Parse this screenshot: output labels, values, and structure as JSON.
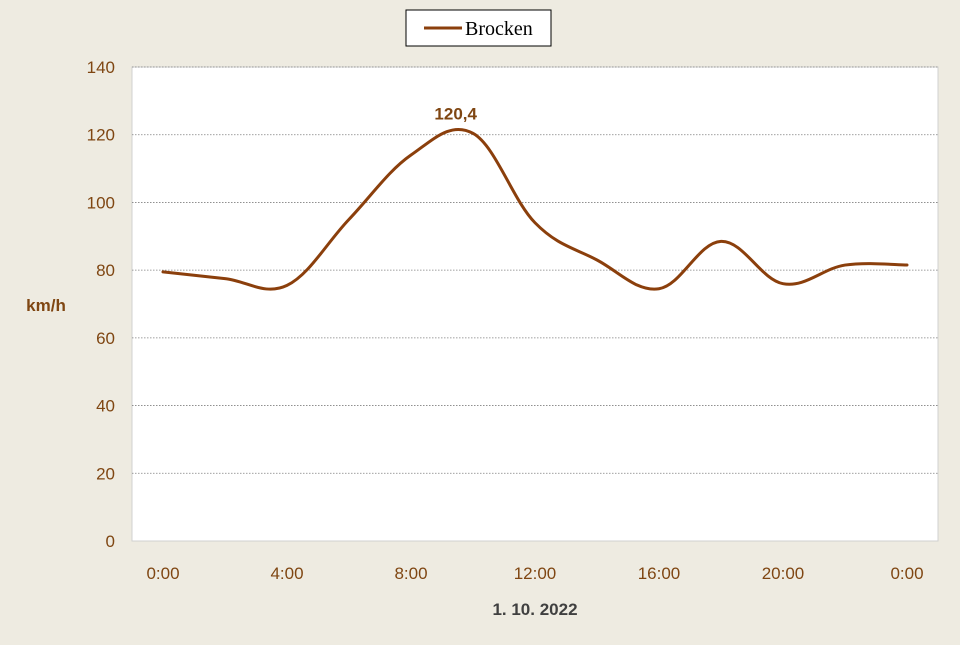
{
  "chart_data": {
    "type": "line",
    "title": "",
    "xlabel": "1. 10. 2022",
    "ylabel": "km/h",
    "ylim": [
      0,
      140
    ],
    "yticks": [
      0,
      20,
      40,
      60,
      80,
      100,
      120,
      140
    ],
    "xlim": [
      0,
      24
    ],
    "xticks": [
      0,
      4,
      8,
      12,
      16,
      20,
      24
    ],
    "xtick_labels": [
      "0:00",
      "4:00",
      "8:00",
      "12:00",
      "16:00",
      "20:00",
      "0:00"
    ],
    "grid": true,
    "legend_position": "top-center",
    "series": [
      {
        "name": "Brocken",
        "color": "#8b3f0c",
        "x": [
          0,
          2,
          4,
          6,
          8,
          10,
          12,
          14,
          16,
          18,
          20,
          22,
          24
        ],
        "values": [
          79.5,
          77.5,
          75.5,
          95,
          114,
          120.4,
          94,
          83,
          74.5,
          88.5,
          76,
          81.5,
          81.5
        ]
      }
    ],
    "annotations": [
      {
        "text": "120,4",
        "x": 9.7,
        "y": 120.4
      }
    ]
  },
  "colors": {
    "background": "#eeebe1",
    "plot_area": "#ffffff",
    "text": "#7f4612",
    "axis_title": "#404040",
    "grid": "#808080"
  }
}
